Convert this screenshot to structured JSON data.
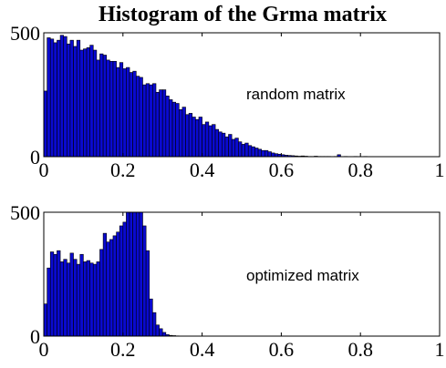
{
  "title": "Histogram of the Grma matrix",
  "bar_color": "#0a0ad0",
  "bar_edge_color": "#000000",
  "chart_data": [
    {
      "type": "bar",
      "title": "Histogram of the Grma matrix",
      "xlabel": "",
      "ylabel": "",
      "xlim": [
        0,
        1
      ],
      "ylim": [
        0,
        500
      ],
      "xticks": [
        "0",
        "0.2",
        "0.4",
        "0.6",
        "0.8",
        "1"
      ],
      "xtick_values": [
        0,
        0.2,
        0.4,
        0.6,
        0.8,
        1
      ],
      "yticks": [
        "0",
        "500"
      ],
      "ytick_values": [
        0,
        500
      ],
      "bin_width": 0.00833,
      "annotation": "random matrix",
      "grid": false,
      "bins": [
        [
          0.0042,
          265
        ],
        [
          0.0125,
          480
        ],
        [
          0.0208,
          475
        ],
        [
          0.0292,
          460
        ],
        [
          0.0375,
          470
        ],
        [
          0.0458,
          490
        ],
        [
          0.0542,
          485
        ],
        [
          0.0625,
          455
        ],
        [
          0.0708,
          470
        ],
        [
          0.0792,
          445
        ],
        [
          0.0875,
          470
        ],
        [
          0.0958,
          430
        ],
        [
          0.1042,
          435
        ],
        [
          0.1125,
          440
        ],
        [
          0.1208,
          450
        ],
        [
          0.1292,
          430
        ],
        [
          0.1375,
          390
        ],
        [
          0.1458,
          415
        ],
        [
          0.1542,
          410
        ],
        [
          0.1625,
          390
        ],
        [
          0.1708,
          385
        ],
        [
          0.1792,
          385
        ],
        [
          0.1875,
          360
        ],
        [
          0.1958,
          380
        ],
        [
          0.2042,
          355
        ],
        [
          0.2125,
          360
        ],
        [
          0.2208,
          340
        ],
        [
          0.2292,
          345
        ],
        [
          0.2375,
          325
        ],
        [
          0.2458,
          320
        ],
        [
          0.2542,
          290
        ],
        [
          0.2625,
          295
        ],
        [
          0.2708,
          290
        ],
        [
          0.2792,
          295
        ],
        [
          0.2875,
          260
        ],
        [
          0.2958,
          270
        ],
        [
          0.3042,
          270
        ],
        [
          0.3125,
          245
        ],
        [
          0.3208,
          230
        ],
        [
          0.3292,
          220
        ],
        [
          0.3375,
          215
        ],
        [
          0.3458,
          190
        ],
        [
          0.3542,
          200
        ],
        [
          0.3625,
          170
        ],
        [
          0.3708,
          175
        ],
        [
          0.3792,
          160
        ],
        [
          0.3875,
          150
        ],
        [
          0.3958,
          160
        ],
        [
          0.4042,
          130
        ],
        [
          0.4125,
          140
        ],
        [
          0.4208,
          125
        ],
        [
          0.4292,
          130
        ],
        [
          0.4375,
          110
        ],
        [
          0.4458,
          100
        ],
        [
          0.4542,
          95
        ],
        [
          0.4625,
          80
        ],
        [
          0.4708,
          90
        ],
        [
          0.4792,
          70
        ],
        [
          0.4875,
          75
        ],
        [
          0.4958,
          60
        ],
        [
          0.5042,
          50
        ],
        [
          0.5125,
          55
        ],
        [
          0.5208,
          45
        ],
        [
          0.5292,
          40
        ],
        [
          0.5375,
          35
        ],
        [
          0.5458,
          30
        ],
        [
          0.5542,
          25
        ],
        [
          0.5625,
          25
        ],
        [
          0.5708,
          20
        ],
        [
          0.5792,
          15
        ],
        [
          0.5875,
          12
        ],
        [
          0.5958,
          10
        ],
        [
          0.6042,
          8
        ],
        [
          0.6125,
          6
        ],
        [
          0.6208,
          5
        ],
        [
          0.6292,
          4
        ],
        [
          0.6375,
          3
        ],
        [
          0.6458,
          2
        ],
        [
          0.6542,
          3
        ],
        [
          0.6625,
          2
        ],
        [
          0.6708,
          1
        ],
        [
          0.6792,
          1
        ],
        [
          0.6875,
          2
        ],
        [
          0.6958,
          1
        ],
        [
          0.7042,
          1
        ],
        [
          0.7125,
          1
        ],
        [
          0.7208,
          1
        ],
        [
          0.7375,
          1
        ],
        [
          0.7458,
          8
        ],
        [
          0.7625,
          1
        ],
        [
          0.7875,
          1
        ],
        [
          0.8125,
          1
        ]
      ]
    },
    {
      "type": "bar",
      "title": "",
      "xlabel": "",
      "ylabel": "",
      "xlim": [
        0,
        1
      ],
      "ylim": [
        0,
        500
      ],
      "xticks": [
        "0",
        "0.2",
        "0.4",
        "0.6",
        "0.8",
        "1"
      ],
      "xtick_values": [
        0,
        0.2,
        0.4,
        0.6,
        0.8,
        1
      ],
      "yticks": [
        "0",
        "500"
      ],
      "ytick_values": [
        0,
        500
      ],
      "bin_width": 0.00833,
      "annotation": "optimized matrix",
      "grid": false,
      "bins": [
        [
          0.0042,
          130
        ],
        [
          0.0125,
          275
        ],
        [
          0.0208,
          340
        ],
        [
          0.0292,
          330
        ],
        [
          0.0375,
          345
        ],
        [
          0.0458,
          300
        ],
        [
          0.0542,
          310
        ],
        [
          0.0625,
          295
        ],
        [
          0.0708,
          335
        ],
        [
          0.0792,
          310
        ],
        [
          0.0875,
          290
        ],
        [
          0.0958,
          330
        ],
        [
          0.1042,
          300
        ],
        [
          0.1125,
          305
        ],
        [
          0.1208,
          295
        ],
        [
          0.1292,
          290
        ],
        [
          0.1375,
          300
        ],
        [
          0.1458,
          350
        ],
        [
          0.1542,
          415
        ],
        [
          0.1625,
          380
        ],
        [
          0.1708,
          390
        ],
        [
          0.1792,
          405
        ],
        [
          0.1875,
          420
        ],
        [
          0.1958,
          445
        ],
        [
          0.2042,
          460
        ],
        [
          0.2125,
          500
        ],
        [
          0.2208,
          500
        ],
        [
          0.2292,
          500
        ],
        [
          0.2375,
          500
        ],
        [
          0.2458,
          500
        ],
        [
          0.2542,
          445
        ],
        [
          0.2625,
          345
        ],
        [
          0.2708,
          150
        ],
        [
          0.2792,
          95
        ],
        [
          0.2875,
          45
        ],
        [
          0.2958,
          30
        ],
        [
          0.3042,
          15
        ],
        [
          0.3125,
          6
        ],
        [
          0.3208,
          3
        ],
        [
          0.3292,
          2
        ],
        [
          0.3375,
          1
        ]
      ]
    }
  ]
}
